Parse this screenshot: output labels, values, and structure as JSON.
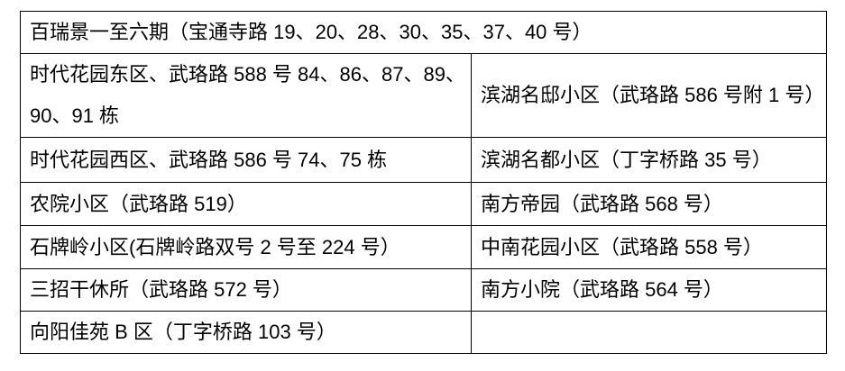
{
  "table": {
    "header_row": "百瑞景一至六期（宝通寺路 19、20、28、30、35、37、40 号）",
    "rows": [
      [
        "时代花园东区、武珞路 588 号 84、86、87、89、90、91 栋",
        "滨湖名邸小区（武珞路 586 号附 1 号）"
      ],
      [
        "时代花园西区、武珞路 586 号 74、75 栋",
        "滨湖名都小区（丁字桥路 35 号）"
      ],
      [
        "农院小区（武珞路 519）",
        "南方帝园（武珞路 568 号）"
      ],
      [
        "石牌岭小区(石牌岭路双号 2 号至 224 号）",
        "中南花园小区（武珞路 558 号）"
      ],
      [
        "三招干休所（武珞路 572 号）",
        "南方小院（武珞路 564 号）"
      ],
      [
        "向阳佳苑 B 区（丁字桥路 103 号）",
        ""
      ]
    ]
  }
}
